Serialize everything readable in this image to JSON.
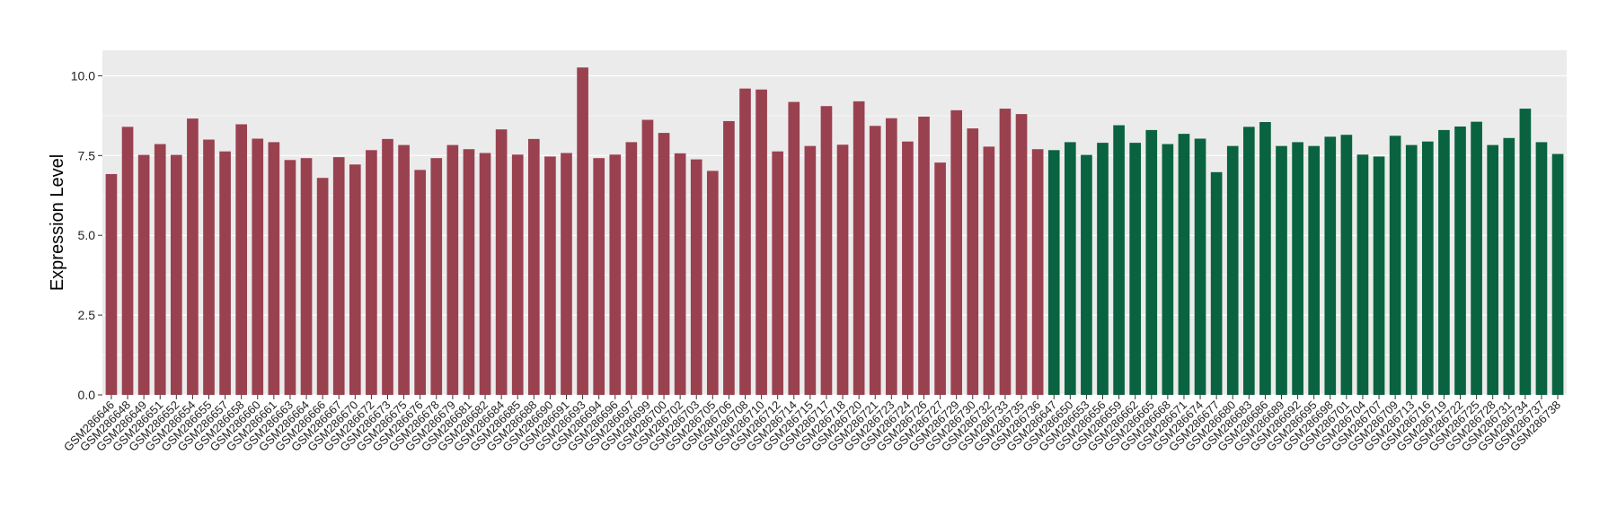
{
  "chart_data": {
    "type": "bar",
    "title": "",
    "xlabel": "",
    "ylabel": "Expression Level",
    "ylim": [
      0,
      10.8
    ],
    "yticks": [
      0.0,
      2.5,
      5.0,
      7.5,
      10.0
    ],
    "ytick_labels": [
      "0.0",
      "2.5",
      "5.0",
      "7.5",
      "10.0"
    ],
    "grid": true,
    "legend": "none",
    "colors": {
      "group1": "#9a4150",
      "group2": "#0a6340",
      "panel": "#ebebeb",
      "grid": "#ffffff"
    },
    "series": [
      {
        "color": "#9a4150",
        "categories": [
          "GSM286646",
          "GSM286648",
          "GSM286649",
          "GSM286651",
          "GSM286652",
          "GSM286654",
          "GSM286655",
          "GSM286657",
          "GSM286658",
          "GSM286660",
          "GSM286661",
          "GSM286663",
          "GSM286664",
          "GSM286666",
          "GSM286667",
          "GSM286670",
          "GSM286672",
          "GSM286673",
          "GSM286675",
          "GSM286676",
          "GSM286678",
          "GSM286679",
          "GSM286681",
          "GSM286682",
          "GSM286684",
          "GSM286685",
          "GSM286688",
          "GSM286690",
          "GSM286691",
          "GSM286693",
          "GSM286694",
          "GSM286696",
          "GSM286697",
          "GSM286699",
          "GSM286700",
          "GSM286702",
          "GSM286703",
          "GSM286705",
          "GSM286706",
          "GSM286708",
          "GSM286710",
          "GSM286712",
          "GSM286714",
          "GSM286715",
          "GSM286717",
          "GSM286718",
          "GSM286720",
          "GSM286721",
          "GSM286723",
          "GSM286724",
          "GSM286726",
          "GSM286727",
          "GSM286729",
          "GSM286730",
          "GSM286732",
          "GSM286733",
          "GSM286735",
          "GSM286736"
        ],
        "values": [
          6.92,
          8.4,
          7.52,
          7.86,
          7.52,
          8.66,
          8.0,
          7.63,
          8.48,
          8.03,
          7.92,
          7.36,
          7.42,
          6.8,
          7.45,
          7.22,
          7.67,
          8.02,
          7.83,
          7.05,
          7.42,
          7.83,
          7.7,
          7.58,
          8.32,
          7.53,
          8.02,
          7.47,
          7.58,
          10.26,
          7.42,
          7.53,
          7.92,
          8.62,
          8.21,
          7.57,
          7.38,
          7.02,
          8.58,
          9.6,
          9.57,
          7.63,
          9.18,
          7.8,
          9.05,
          7.84,
          9.2,
          8.43,
          8.67,
          7.94,
          8.72,
          7.28,
          8.92,
          8.35,
          7.78,
          8.97,
          8.8,
          7.7
        ]
      },
      {
        "color": "#0a6340",
        "categories": [
          "GSM286647",
          "GSM286650",
          "GSM286653",
          "GSM286656",
          "GSM286659",
          "GSM286662",
          "GSM286665",
          "GSM286668",
          "GSM286671",
          "GSM286674",
          "GSM286677",
          "GSM286680",
          "GSM286683",
          "GSM286686",
          "GSM286689",
          "GSM286692",
          "GSM286695",
          "GSM286698",
          "GSM286701",
          "GSM286704",
          "GSM286707",
          "GSM286709",
          "GSM286713",
          "GSM286716",
          "GSM286719",
          "GSM286722",
          "GSM286725",
          "GSM286728",
          "GSM286731",
          "GSM286734",
          "GSM286737",
          "GSM286738"
        ],
        "values": [
          7.67,
          7.92,
          7.52,
          7.9,
          8.45,
          7.9,
          8.3,
          7.86,
          8.18,
          8.03,
          6.98,
          7.8,
          8.4,
          8.55,
          7.8,
          7.92,
          7.8,
          8.09,
          8.15,
          7.53,
          7.47,
          8.12,
          7.83,
          7.94,
          8.3,
          8.41,
          8.56,
          7.83,
          8.05,
          8.97,
          7.92,
          7.55
        ]
      }
    ]
  }
}
